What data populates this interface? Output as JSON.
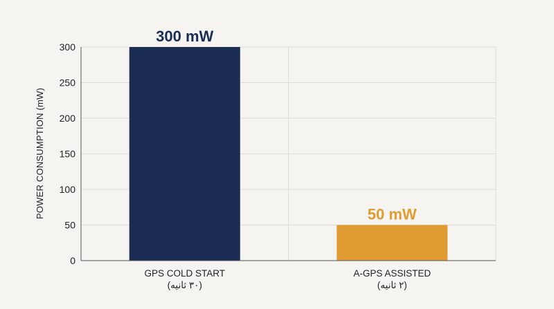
{
  "chart_data": {
    "type": "bar",
    "categories": [
      "GPS COLD START",
      "A-GPS ASSISTED"
    ],
    "category_sublabels": [
      "(۳۰ ثانیه)",
      "(۲ ثانیه)"
    ],
    "values": [
      300,
      50
    ],
    "data_labels": [
      "300 mW",
      "50 mW"
    ],
    "bar_colors": [
      "#1b2d52",
      "#e09c32"
    ],
    "title": "",
    "xlabel": "",
    "ylabel": "POWER CONSUMPTION (mW)",
    "ylim": [
      0,
      300
    ],
    "yticks": [
      0,
      50,
      100,
      150,
      200,
      250,
      300
    ],
    "grid": true
  }
}
